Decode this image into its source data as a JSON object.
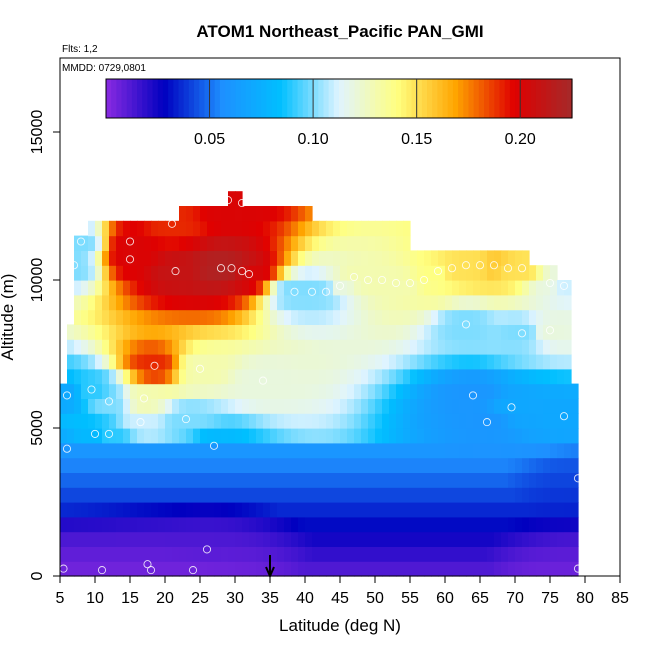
{
  "chart_data": {
    "type": "heatmap",
    "title": "ATOM1 Northeast_Pacific PAN_GMI",
    "flights_label": "Flts: 1,2",
    "dates_label": "MMDD: 0729,0801",
    "xlabel": "Latitude (deg N)",
    "ylabel": "Altitude (m)",
    "xlim": [
      5,
      85
    ],
    "ylim": [
      0,
      17500
    ],
    "x_ticks": [
      5,
      10,
      15,
      20,
      25,
      30,
      35,
      40,
      45,
      50,
      55,
      60,
      65,
      70,
      75,
      80,
      85
    ],
    "y_ticks": [
      0,
      5000,
      10000,
      15000
    ],
    "colorbar": {
      "range": [
        0,
        0.225
      ],
      "ticks": [
        0.05,
        0.1,
        0.15,
        0.2
      ],
      "tick_labels": [
        "0.05",
        "0.10",
        "0.15",
        "0.20"
      ],
      "colors": [
        "#8a2be2",
        "#0000c0",
        "#1e90ff",
        "#00bfff",
        "#e0f4ff",
        "#ffff80",
        "#ffa500",
        "#e00000",
        "#a52a2a"
      ]
    },
    "arrow_latitude": 35,
    "colors": {
      "low": "#8a2be2",
      "high": "#a52a2a"
    },
    "value_grid": {
      "lat_start": 5,
      "lat_step": 1,
      "alt_start": 0,
      "alt_step": 500,
      "rows": [
        [
          5,
          79,
          [
            0.005
          ]
        ],
        [
          1000,
          79,
          [
            0.012
          ]
        ],
        [
          2000,
          79,
          [
            0.025
          ]
        ],
        [
          3000,
          79,
          [
            0.045
          ]
        ],
        [
          4500,
          79,
          [
            0.07
          ]
        ]
      ]
    },
    "profile_points": [
      [
        5.5,
        250,
        0.004
      ],
      [
        11,
        200,
        0.004
      ],
      [
        17.5,
        400,
        0.004
      ],
      [
        18,
        200,
        0.004
      ],
      [
        24,
        200,
        0.004
      ],
      [
        26,
        900,
        0.006
      ],
      [
        79,
        250,
        0.006
      ],
      [
        10,
        4800,
        0.08
      ],
      [
        12,
        4800,
        0.09
      ],
      [
        6,
        4300,
        0.07
      ],
      [
        27,
        4400,
        0.08
      ],
      [
        16.5,
        5200,
        0.11
      ],
      [
        23,
        5300,
        0.1
      ],
      [
        12,
        5900,
        0.1
      ],
      [
        6,
        6100,
        0.07
      ],
      [
        9.5,
        6300,
        0.09
      ],
      [
        17,
        6000,
        0.13
      ],
      [
        18.5,
        7100,
        0.19
      ],
      [
        25,
        7000,
        0.13
      ],
      [
        64,
        6100,
        0.06
      ],
      [
        66,
        5200,
        0.06
      ],
      [
        69.5,
        5700,
        0.07
      ],
      [
        77,
        5400,
        0.07
      ],
      [
        79,
        3300,
        0.04
      ],
      [
        7,
        10500,
        0.1
      ],
      [
        15,
        10700,
        0.2
      ],
      [
        15,
        11300,
        0.2
      ],
      [
        21,
        11900,
        0.19
      ],
      [
        21.5,
        10300,
        0.21
      ],
      [
        28,
        10400,
        0.22
      ],
      [
        29.5,
        10400,
        0.22
      ],
      [
        31,
        10300,
        0.21
      ],
      [
        32,
        10200,
        0.2
      ],
      [
        29,
        12700,
        0.2
      ],
      [
        31,
        12600,
        0.2
      ],
      [
        38.5,
        9600,
        0.1
      ],
      [
        41,
        9600,
        0.1
      ],
      [
        43,
        9600,
        0.1
      ],
      [
        45,
        9800,
        0.12
      ],
      [
        47,
        10100,
        0.13
      ],
      [
        49,
        10000,
        0.13
      ],
      [
        51,
        10000,
        0.13
      ],
      [
        53,
        9900,
        0.13
      ],
      [
        55,
        9900,
        0.13
      ],
      [
        57,
        10000,
        0.14
      ],
      [
        59,
        10300,
        0.14
      ],
      [
        61,
        10400,
        0.15
      ],
      [
        63,
        10500,
        0.15
      ],
      [
        65,
        10500,
        0.15
      ],
      [
        67,
        10500,
        0.16
      ],
      [
        69,
        10400,
        0.15
      ],
      [
        71,
        10400,
        0.15
      ],
      [
        63,
        8500,
        0.1
      ],
      [
        71,
        8200,
        0.1
      ],
      [
        75,
        9900,
        0.12
      ],
      [
        77,
        9800,
        0.11
      ],
      [
        75,
        8300,
        0.12
      ],
      [
        8,
        11300,
        0.1
      ],
      [
        34,
        6600,
        0.12
      ]
    ]
  }
}
